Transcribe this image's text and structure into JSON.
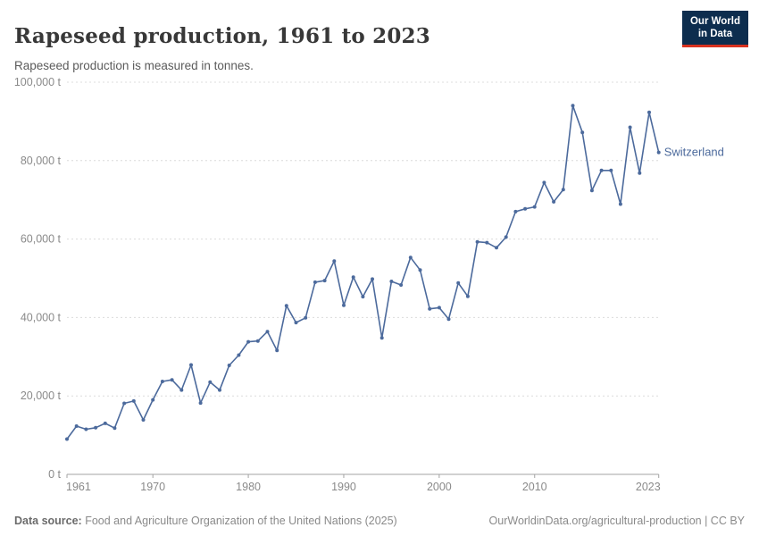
{
  "header": {
    "title": "Rapeseed production, 1961 to 2023",
    "subtitle": "Rapeseed production is measured in tonnes.",
    "logo_line1": "Our World",
    "logo_line2": "in Data"
  },
  "chart_data": {
    "type": "line",
    "title": "Rapeseed production, 1961 to 2023",
    "xlabel": "",
    "ylabel": "tonnes",
    "xlim": [
      1961,
      2023
    ],
    "ylim": [
      0,
      100000
    ],
    "grid": "horizontal-dashed",
    "legend_position": "end-of-line-label",
    "x_ticks": [
      1961,
      1970,
      1980,
      1990,
      2000,
      2010,
      2023
    ],
    "y_ticks": [
      0,
      20000,
      40000,
      60000,
      80000,
      100000
    ],
    "y_tick_labels": [
      "0 t",
      "20,000 t",
      "40,000 t",
      "60,000 t",
      "80,000 t",
      "100,000 t"
    ],
    "series": [
      {
        "name": "Switzerland",
        "color": "#4C6A9C",
        "x": [
          1961,
          1962,
          1963,
          1964,
          1965,
          1966,
          1967,
          1968,
          1969,
          1970,
          1971,
          1972,
          1973,
          1974,
          1975,
          1976,
          1977,
          1978,
          1979,
          1980,
          1981,
          1982,
          1983,
          1984,
          1985,
          1986,
          1987,
          1988,
          1989,
          1990,
          1991,
          1992,
          1993,
          1994,
          1995,
          1996,
          1997,
          1998,
          1999,
          2000,
          2001,
          2002,
          2003,
          2004,
          2005,
          2006,
          2007,
          2008,
          2009,
          2010,
          2011,
          2012,
          2013,
          2014,
          2015,
          2016,
          2017,
          2018,
          2019,
          2020,
          2021,
          2022,
          2023
        ],
        "values": [
          9000,
          12300,
          11500,
          11900,
          13000,
          11800,
          18100,
          18700,
          13900,
          19000,
          23700,
          24100,
          21500,
          27900,
          18200,
          23500,
          21500,
          27800,
          30400,
          33800,
          34000,
          36400,
          31600,
          43000,
          38700,
          39900,
          49000,
          49400,
          54400,
          43100,
          50300,
          45300,
          49800,
          34800,
          49200,
          48300,
          55300,
          52100,
          42200,
          42500,
          39600,
          48800,
          45400,
          59300,
          59100,
          57800,
          60500,
          67000,
          67700,
          68200,
          74400,
          69500,
          72600,
          94000,
          87200,
          72400,
          77500,
          77500,
          68900,
          88500,
          76800,
          92300,
          82100
        ]
      }
    ]
  },
  "footer": {
    "datasource_label": "Data source:",
    "datasource_text": " Food and Agriculture Organization of the United Nations (2025)",
    "credit": "OurWorldinData.org/agricultural-production | CC BY"
  },
  "colors": {
    "line": "#4C6A9C",
    "grid": "#dcdcdc",
    "axis": "#a3a3a3",
    "tick_text": "#8a8a8a",
    "logo_bg": "#0d2d4e",
    "logo_red": "#d8321f"
  }
}
